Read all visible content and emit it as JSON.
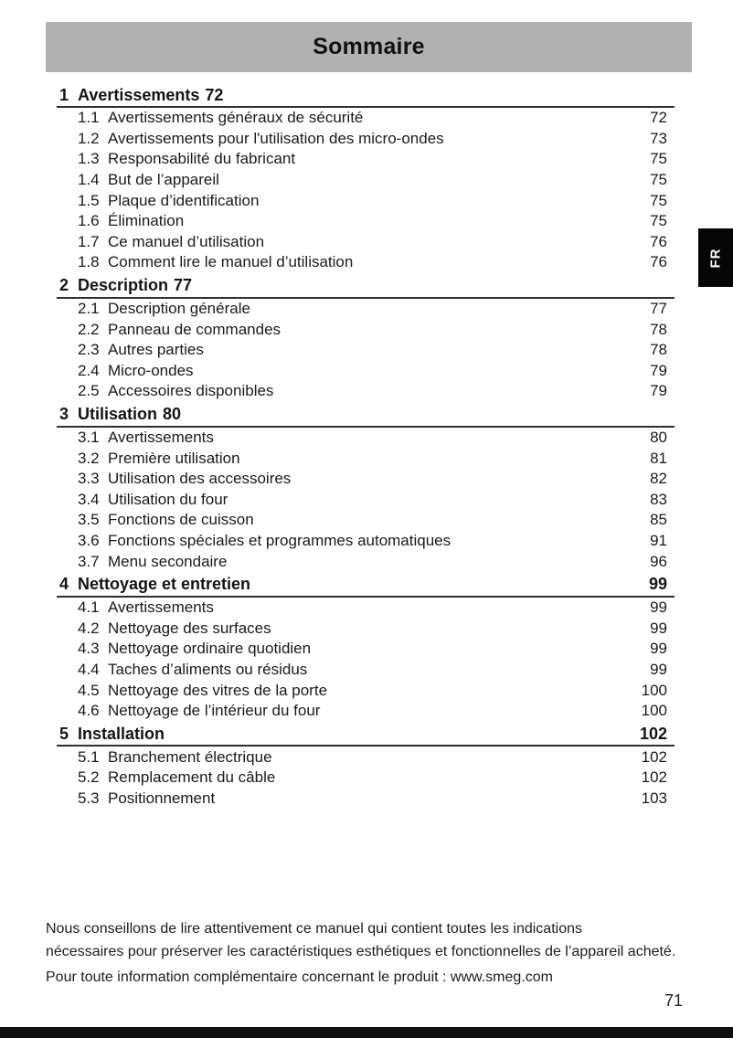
{
  "header": {
    "title": "Sommaire",
    "language_tab": "FR"
  },
  "colors": {
    "header_bar": "#b1b1b1",
    "tab_bg": "#060606",
    "tab_text": "#ffffff",
    "section_rule": "#2e2e2e",
    "bottom_bar": "#101010"
  },
  "toc": {
    "sections": [
      {
        "number": "1",
        "title": "Avertissements",
        "page": "72",
        "page_inline": true,
        "entries": [
          {
            "number": "1.1",
            "title": "Avertissements généraux de sécurité",
            "page": "72"
          },
          {
            "number": "1.2",
            "title": "Avertissements pour l'utilisation des micro-ondes",
            "page": "73"
          },
          {
            "number": "1.3",
            "title": "Responsabilité du fabricant",
            "page": "75"
          },
          {
            "number": "1.4",
            "title": "But de l’appareil",
            "page": "75"
          },
          {
            "number": "1.5",
            "title": "Plaque d’identification",
            "page": "75"
          },
          {
            "number": "1.6",
            "title": "Élimination",
            "page": "75"
          },
          {
            "number": "1.7",
            "title": "Ce manuel d’utilisation",
            "page": "76"
          },
          {
            "number": "1.8",
            "title": "Comment lire le manuel d’utilisation",
            "page": "76"
          }
        ]
      },
      {
        "number": "2",
        "title": "Description",
        "page": "77",
        "page_inline": true,
        "entries": [
          {
            "number": "2.1",
            "title": "Description générale",
            "page": "77"
          },
          {
            "number": "2.2",
            "title": "Panneau de commandes",
            "page": "78"
          },
          {
            "number": "2.3",
            "title": "Autres parties",
            "page": "78"
          },
          {
            "number": "2.4",
            "title": "Micro-ondes",
            "page": "79"
          },
          {
            "number": "2.5",
            "title": "Accessoires disponibles",
            "page": "79"
          }
        ]
      },
      {
        "number": "3",
        "title": "Utilisation",
        "page": "80",
        "page_inline": true,
        "entries": [
          {
            "number": "3.1",
            "title": "Avertissements",
            "page": "80"
          },
          {
            "number": "3.2",
            "title": "Première utilisation",
            "page": "81"
          },
          {
            "number": "3.3",
            "title": "Utilisation des accessoires",
            "page": "82"
          },
          {
            "number": "3.4",
            "title": "Utilisation du four",
            "page": "83"
          },
          {
            "number": "3.5",
            "title": "Fonctions de cuisson",
            "page": "85"
          },
          {
            "number": "3.6",
            "title": "Fonctions spéciales et programmes automatiques",
            "page": "91"
          },
          {
            "number": "3.7",
            "title": "Menu secondaire",
            "page": "96"
          }
        ]
      },
      {
        "number": "4",
        "title": "Nettoyage et entretien",
        "page": "99",
        "page_inline": false,
        "entries": [
          {
            "number": "4.1",
            "title": "Avertissements",
            "page": "99"
          },
          {
            "number": "4.2",
            "title": "Nettoyage des surfaces",
            "page": "99"
          },
          {
            "number": "4.3",
            "title": "Nettoyage ordinaire quotidien",
            "page": "99"
          },
          {
            "number": "4.4",
            "title": "Taches d’aliments ou résidus",
            "page": "99"
          },
          {
            "number": "4.5",
            "title": "Nettoyage des vitres de la porte",
            "page": "100"
          },
          {
            "number": "4.6",
            "title": "Nettoyage de l’intérieur du four",
            "page": "100"
          }
        ]
      },
      {
        "number": "5",
        "title": "Installation",
        "page": "102",
        "page_inline": false,
        "entries": [
          {
            "number": "5.1",
            "title": "Branchement électrique",
            "page": "102"
          },
          {
            "number": "5.2",
            "title": "Remplacement du câble",
            "page": "102"
          },
          {
            "number": "5.3",
            "title": "Positionnement",
            "page": "103"
          }
        ]
      }
    ]
  },
  "footer": {
    "lines": [
      "Nous conseillons de lire attentivement ce manuel qui contient toutes les indications",
      "nécessaires pour préserver les caractéristiques esthétiques et fonctionnelles de l’appareil acheté.",
      "Pour toute information complémentaire concernant le produit : www.smeg.com"
    ],
    "page_number": "71"
  }
}
